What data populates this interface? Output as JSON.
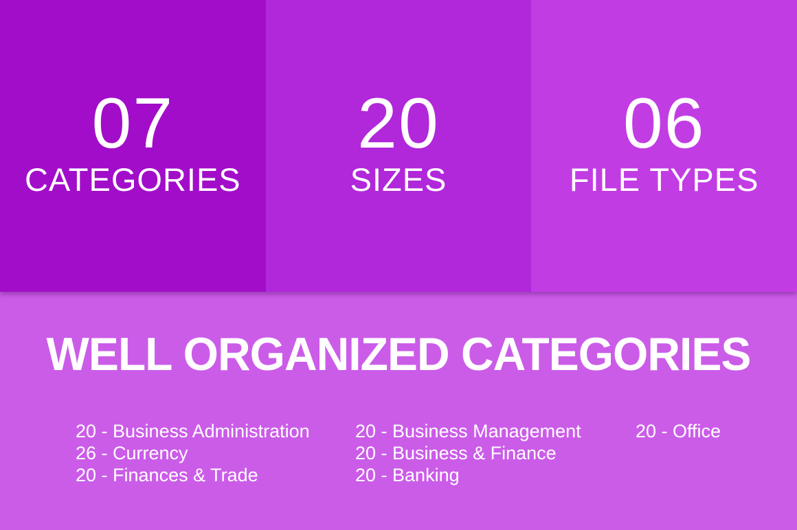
{
  "stats": [
    {
      "value": "07",
      "label": "CATEGORIES"
    },
    {
      "value": "20",
      "label": "SIZES"
    },
    {
      "value": "06",
      "label": "FILE TYPES"
    }
  ],
  "section": {
    "title": "WELL ORGANIZED CATEGORIES",
    "columns": [
      {
        "items": [
          "20 - Business Administration",
          "26 - Currency",
          "20 - Finances & Trade"
        ]
      },
      {
        "items": [
          "20 - Business Management",
          "20 - Business & Finance",
          "20 - Banking"
        ]
      },
      {
        "items": [
          "20 - Office"
        ]
      }
    ]
  },
  "colors": {
    "panel1": "#a20dc9",
    "panel2": "#b127da",
    "panel3": "#c23ce4",
    "bottom": "#cb5ce8",
    "text": "#ffffff"
  }
}
